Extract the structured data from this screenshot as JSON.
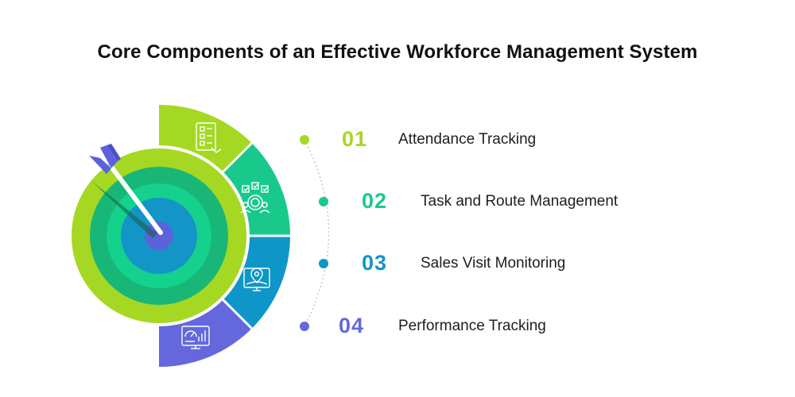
{
  "title": "Core Components of an Effective Workforce Management System",
  "colors": {
    "lime": "#a5d823",
    "green": "#19c98c",
    "blue": "#0f96c8",
    "violet": "#6468dc",
    "target_dark": "#18b777",
    "target_center": "#5b62dc",
    "dotted_arc": "#c8c8c8"
  },
  "items": [
    {
      "number": "01",
      "label": "Attendance Tracking",
      "color": "#a5d823",
      "icon": "checklist-icon"
    },
    {
      "number": "02",
      "label": "Task and Route Management",
      "color": "#19c98c",
      "icon": "team-tasks-icon"
    },
    {
      "number": "03",
      "label": "Sales Visit Monitoring",
      "color": "#0f96c8",
      "icon": "location-monitor-icon"
    },
    {
      "number": "04",
      "label": "Performance Tracking",
      "color": "#6468dc",
      "icon": "analytics-dashboard-icon"
    }
  ]
}
